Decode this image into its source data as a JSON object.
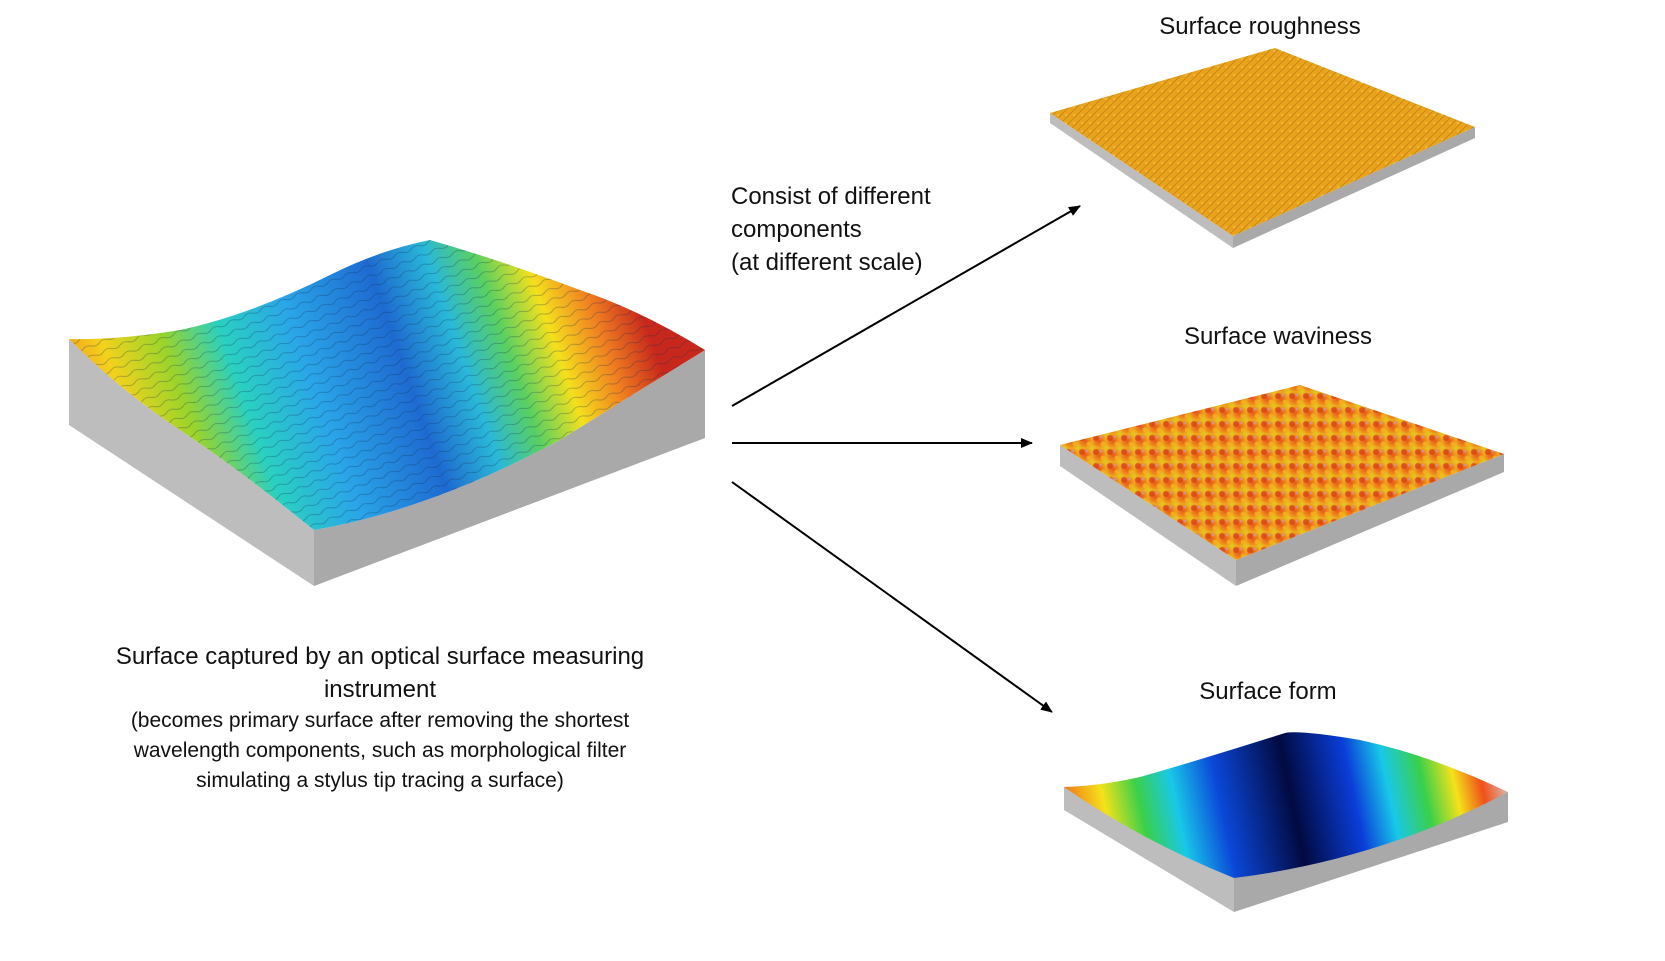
{
  "source": {
    "caption_main_1": "Surface captured by an optical surface measuring",
    "caption_main_2": "instrument",
    "caption_sub_1": "(becomes primary surface after removing the shortest",
    "caption_sub_2": "wavelength components, such as morphological filter",
    "caption_sub_3": "simulating a stylus tip tracing a surface)"
  },
  "arrow_note": {
    "line_1": "Consist of different",
    "line_2": "components",
    "line_3": "(at different scale)"
  },
  "components": [
    {
      "title": "Surface roughness",
      "icon": "roughness-surface-icon",
      "color": "#e9a020"
    },
    {
      "title": "Surface waviness",
      "icon": "waviness-surface-icon",
      "color": "#e65a1c"
    },
    {
      "title": "Surface form",
      "icon": "form-surface-icon",
      "color": "#0a1a8c"
    }
  ],
  "colors": {
    "side_wall": "#b9b9b9",
    "arrow": "#000000"
  }
}
